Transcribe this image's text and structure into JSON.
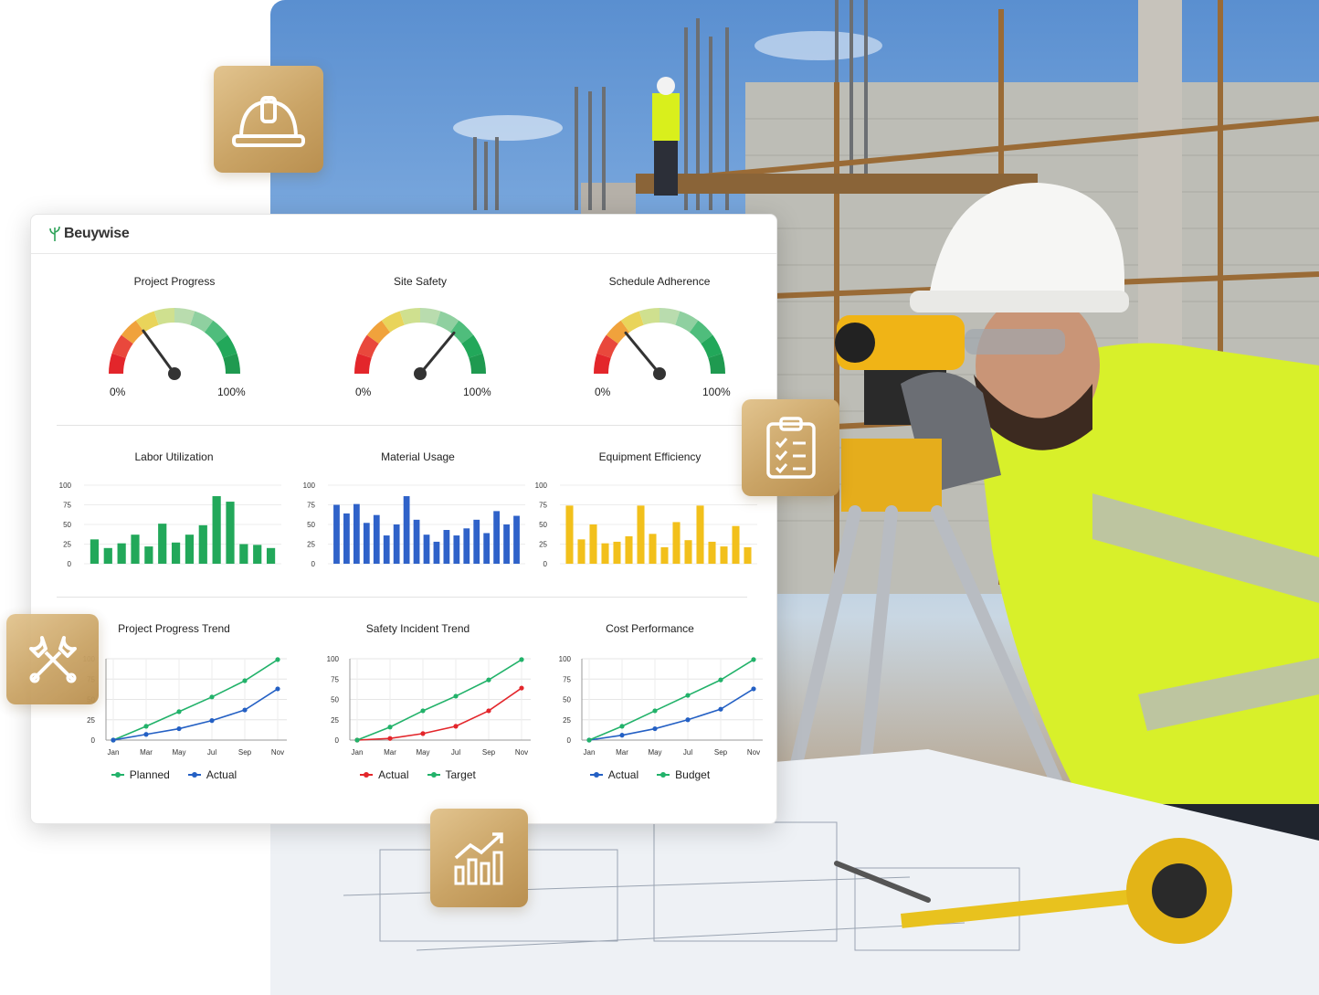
{
  "brand": {
    "name": "Beuywise"
  },
  "gauges": [
    {
      "id": "project-progress",
      "title": "Project Progress",
      "value": 0.3,
      "min_label": "0%",
      "max_label": "100%"
    },
    {
      "id": "site-safety",
      "title": "Site Safety",
      "value": 0.72,
      "min_label": "0%",
      "max_label": "100%"
    },
    {
      "id": "schedule-adherence",
      "title": "Schedule Adherence",
      "value": 0.28,
      "min_label": "0%",
      "max_label": "100%"
    }
  ],
  "chart_data": [
    {
      "type": "bar",
      "title": "Labor Utilization",
      "color": "#22a85a",
      "ylim": [
        0,
        100
      ],
      "yticks": [
        "100",
        "75",
        "50",
        "25",
        "0"
      ],
      "values": [
        31,
        20,
        26,
        37,
        22,
        51,
        27,
        37,
        49,
        86,
        79,
        25,
        24,
        20
      ]
    },
    {
      "type": "bar",
      "title": "Material Usage",
      "color": "#2f62c9",
      "ylim": [
        0,
        100
      ],
      "yticks": [
        "100",
        "75",
        "50",
        "25",
        "0"
      ],
      "values": [
        75,
        64,
        76,
        52,
        62,
        36,
        50,
        86,
        56,
        37,
        28,
        43,
        36,
        45,
        56,
        39,
        67,
        50,
        61
      ]
    },
    {
      "type": "bar",
      "title": "Equipment Efficiency",
      "color": "#f2c01b",
      "ylim": [
        0,
        100
      ],
      "yticks": [
        "100",
        "75",
        "50",
        "25",
        "0"
      ],
      "values": [
        74,
        31,
        50,
        26,
        28,
        35,
        74,
        38,
        21,
        53,
        30,
        74,
        28,
        22,
        48,
        21
      ]
    },
    {
      "type": "line",
      "title": "Project Progress Trend",
      "x": [
        "Jan",
        "Mar",
        "May",
        "Jul",
        "Sep",
        "Nov"
      ],
      "ylim": [
        0,
        100
      ],
      "yticks": [
        "100",
        "75",
        "50",
        "25",
        "0"
      ],
      "series": [
        {
          "name": "Planned",
          "color": "#22b26a",
          "values": [
            0,
            17,
            35,
            53,
            73,
            99
          ]
        },
        {
          "name": "Actual",
          "color": "#2460c4",
          "values": [
            0,
            7,
            14,
            24,
            37,
            63
          ]
        }
      ]
    },
    {
      "type": "line",
      "title": "Safety Incident Trend",
      "x": [
        "Jan",
        "Mar",
        "May",
        "Jul",
        "Sep",
        "Nov"
      ],
      "ylim": [
        0,
        100
      ],
      "yticks": [
        "100",
        "75",
        "50",
        "25",
        "0"
      ],
      "series": [
        {
          "name": "Actual",
          "color": "#e3262b",
          "values": [
            0,
            2,
            8,
            17,
            36,
            64
          ]
        },
        {
          "name": "Target",
          "color": "#22b26a",
          "values": [
            0,
            16,
            36,
            54,
            74,
            99
          ]
        }
      ]
    },
    {
      "type": "line",
      "title": "Cost Performance",
      "x": [
        "Jan",
        "Mar",
        "May",
        "Jul",
        "Sep",
        "Nov"
      ],
      "ylim": [
        0,
        100
      ],
      "yticks": [
        "100",
        "75",
        "50",
        "25",
        "0"
      ],
      "series": [
        {
          "name": "Actual",
          "color": "#2460c4",
          "values": [
            0,
            6,
            14,
            25,
            38,
            63
          ]
        },
        {
          "name": "Budget",
          "color": "#22b26a",
          "values": [
            0,
            17,
            36,
            55,
            74,
            99
          ]
        }
      ]
    }
  ],
  "tiles": [
    {
      "icon": "hard-hat-icon"
    },
    {
      "icon": "clipboard-checklist-icon"
    },
    {
      "icon": "tools-icon"
    },
    {
      "icon": "growth-chart-icon"
    }
  ]
}
